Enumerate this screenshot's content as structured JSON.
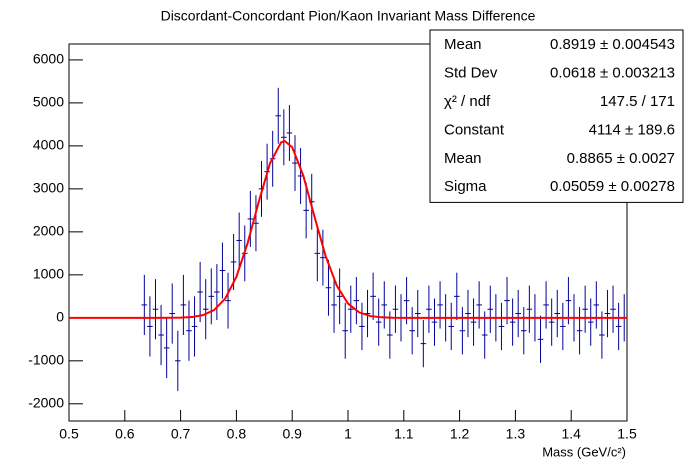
{
  "chart_data": {
    "type": "histogram",
    "title": "Discordant-Concordant Pion/Kaon Invariant Mass Difference",
    "x_label": "Mass (GeV/c²)",
    "xlim": [
      0.5,
      1.5
    ],
    "xticks": [
      0.5,
      0.6,
      0.7,
      0.8,
      0.9,
      1,
      1.1,
      1.2,
      1.3,
      1.4,
      1.5
    ],
    "ylim": [
      -2400,
      6370
    ],
    "yticks": [
      -2000,
      -1000,
      0,
      1000,
      2000,
      3000,
      4000,
      5000,
      6000
    ],
    "color": "#000099",
    "bin_width": 0.01,
    "x": [
      0.635,
      0.645,
      0.655,
      0.665,
      0.675,
      0.685,
      0.695,
      0.705,
      0.715,
      0.725,
      0.735,
      0.745,
      0.755,
      0.765,
      0.775,
      0.785,
      0.795,
      0.805,
      0.815,
      0.825,
      0.835,
      0.845,
      0.855,
      0.865,
      0.875,
      0.885,
      0.895,
      0.905,
      0.915,
      0.925,
      0.935,
      0.945,
      0.955,
      0.965,
      0.975,
      0.985,
      0.995,
      1.005,
      1.015,
      1.025,
      1.035,
      1.045,
      1.055,
      1.065,
      1.075,
      1.085,
      1.095,
      1.105,
      1.115,
      1.125,
      1.135,
      1.145,
      1.155,
      1.165,
      1.175,
      1.185,
      1.195,
      1.205,
      1.215,
      1.225,
      1.235,
      1.245,
      1.255,
      1.265,
      1.275,
      1.285,
      1.295,
      1.305,
      1.315,
      1.325,
      1.335,
      1.345,
      1.355,
      1.365,
      1.375,
      1.385,
      1.395,
      1.405,
      1.415,
      1.425,
      1.435,
      1.445,
      1.455,
      1.465,
      1.475,
      1.485,
      1.495
    ],
    "values": [
      300,
      -200,
      200,
      -400,
      -700,
      100,
      -1000,
      300,
      -300,
      -200,
      600,
      200,
      500,
      600,
      1100,
      400,
      1300,
      1800,
      1500,
      2300,
      2200,
      3000,
      3400,
      3700,
      4700,
      4200,
      4300,
      3600,
      3300,
      2500,
      2700,
      1500,
      1400,
      700,
      300,
      500,
      -300,
      200,
      400,
      -200,
      100,
      500,
      -100,
      300,
      -400,
      200,
      0,
      400,
      -300,
      100,
      -600,
      200,
      -100,
      300,
      0,
      -200,
      500,
      -300,
      100,
      -100,
      300,
      -400,
      200,
      0,
      -200,
      400,
      -100,
      100,
      -300,
      200,
      0,
      -500,
      300,
      -100,
      100,
      -200,
      400,
      0,
      -300,
      200,
      -100,
      300,
      -400,
      100,
      200,
      -200,
      0
    ],
    "errors": [
      700,
      700,
      700,
      700,
      700,
      700,
      700,
      700,
      700,
      700,
      700,
      700,
      650,
      650,
      650,
      650,
      650,
      650,
      650,
      650,
      650,
      650,
      650,
      650,
      650,
      650,
      650,
      650,
      650,
      650,
      650,
      650,
      650,
      650,
      650,
      650,
      650,
      550,
      550,
      550,
      550,
      550,
      550,
      550,
      550,
      550,
      550,
      550,
      550,
      550,
      550,
      550,
      550,
      550,
      550,
      550,
      550,
      550,
      550,
      550,
      550,
      550,
      550,
      550,
      550,
      550,
      550,
      550,
      550,
      550,
      550,
      550,
      550,
      550,
      550,
      550,
      550,
      550,
      550,
      550,
      550,
      550,
      550,
      550,
      550,
      550,
      550
    ],
    "fit": {
      "color": "#ff0000",
      "x": [
        0.5,
        0.64,
        0.66,
        0.68,
        0.7,
        0.72,
        0.74,
        0.76,
        0.78,
        0.8,
        0.82,
        0.84,
        0.86,
        0.88,
        0.8865,
        0.9,
        0.92,
        0.94,
        0.96,
        0.98,
        1.0,
        1.02,
        1.04,
        1.06,
        1.08,
        1.1,
        1.5
      ],
      "values": [
        0,
        0,
        0,
        1,
        5,
        18,
        62,
        181,
        449,
        954,
        1734,
        2696,
        3587,
        4080,
        4114,
        3970,
        3304,
        2352,
        1432,
        745,
        332,
        126,
        41,
        12,
        3,
        0,
        0
      ]
    },
    "stats": [
      {
        "label": "Mean",
        "value": "0.8919 ± 0.004543"
      },
      {
        "label": "Std Dev",
        "value": "0.0618 ± 0.003213"
      },
      {
        "label": "χ² / ndf",
        "value": "147.5 / 171"
      },
      {
        "label": "Constant",
        "value": "4114 ± 189.6"
      },
      {
        "label": "Mean",
        "value": "0.8865 ± 0.0027"
      },
      {
        "label": "Sigma",
        "value": "0.05059 ± 0.00278"
      }
    ]
  }
}
